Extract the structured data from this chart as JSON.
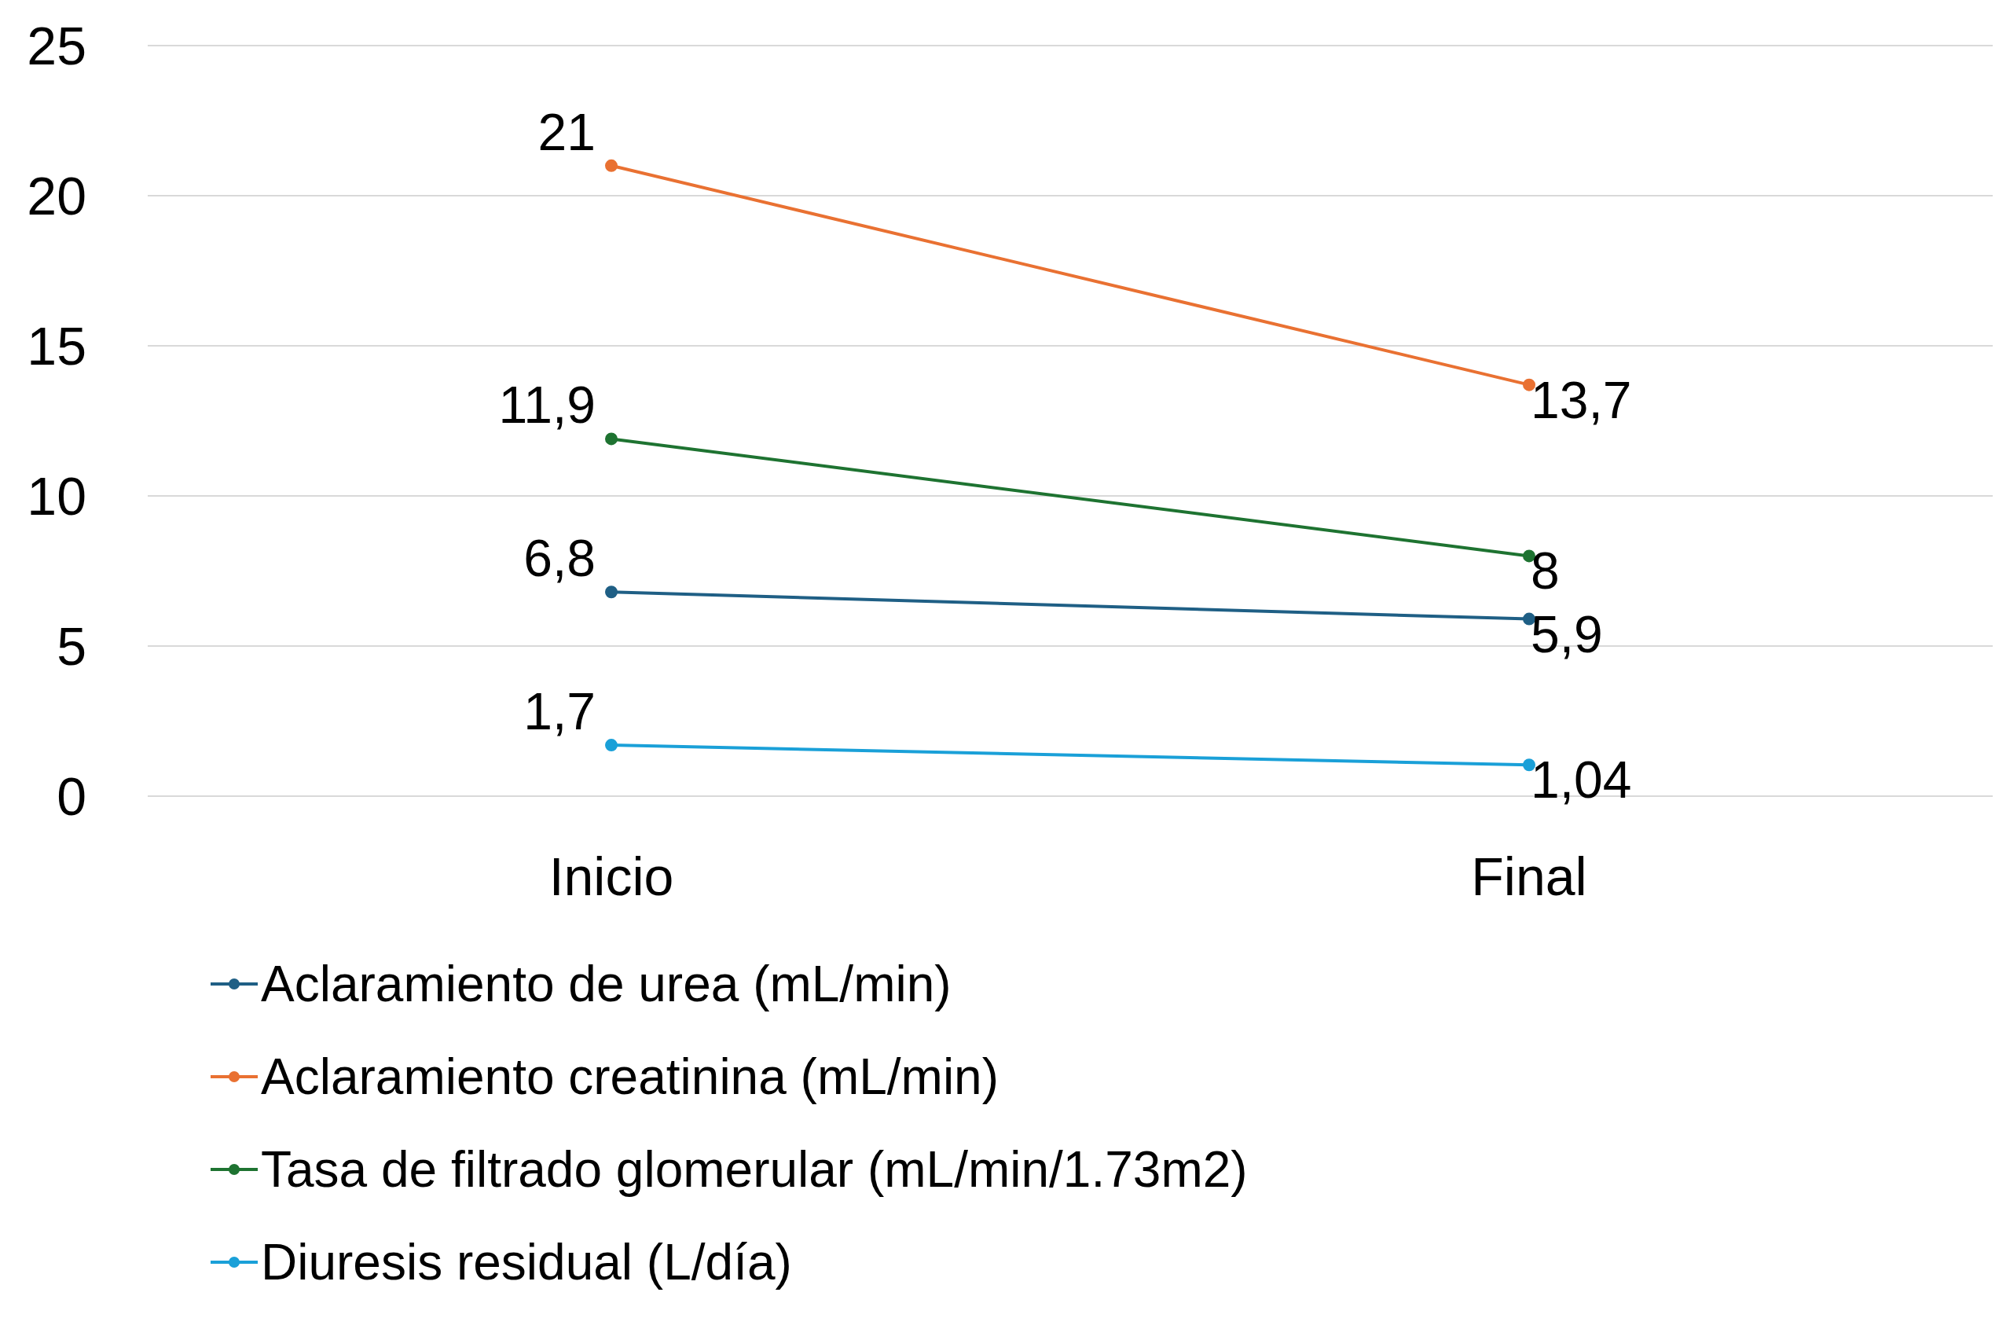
{
  "chart_data": {
    "type": "line",
    "categories": [
      "Inicio",
      "Final"
    ],
    "series": [
      {
        "name": "Aclaramiento de urea (mL/min)",
        "color": "#1f5f85",
        "values": [
          6.8,
          5.9
        ],
        "value_labels": [
          "6,8",
          "5,9"
        ]
      },
      {
        "name": "Aclaramiento creatinina (mL/min)",
        "color": "#e97132",
        "values": [
          21,
          13.7
        ],
        "value_labels": [
          "21",
          "13,7"
        ]
      },
      {
        "name": "Tasa de filtrado glomerular (mL/min/1.73m2)",
        "color": "#1e7331",
        "values": [
          11.9,
          8
        ],
        "value_labels": [
          "11,9",
          "8"
        ]
      },
      {
        "name": "Diuresis residual (L/día)",
        "color": "#1aa0d8",
        "values": [
          1.7,
          1.04
        ],
        "value_labels": [
          "1,7",
          "1,04"
        ]
      }
    ],
    "ylim": [
      0,
      25
    ],
    "yticks": [
      0,
      5,
      10,
      15,
      20,
      25
    ],
    "grid": "y",
    "legend": "bottom",
    "marker": "circle",
    "line_style": "solid"
  }
}
